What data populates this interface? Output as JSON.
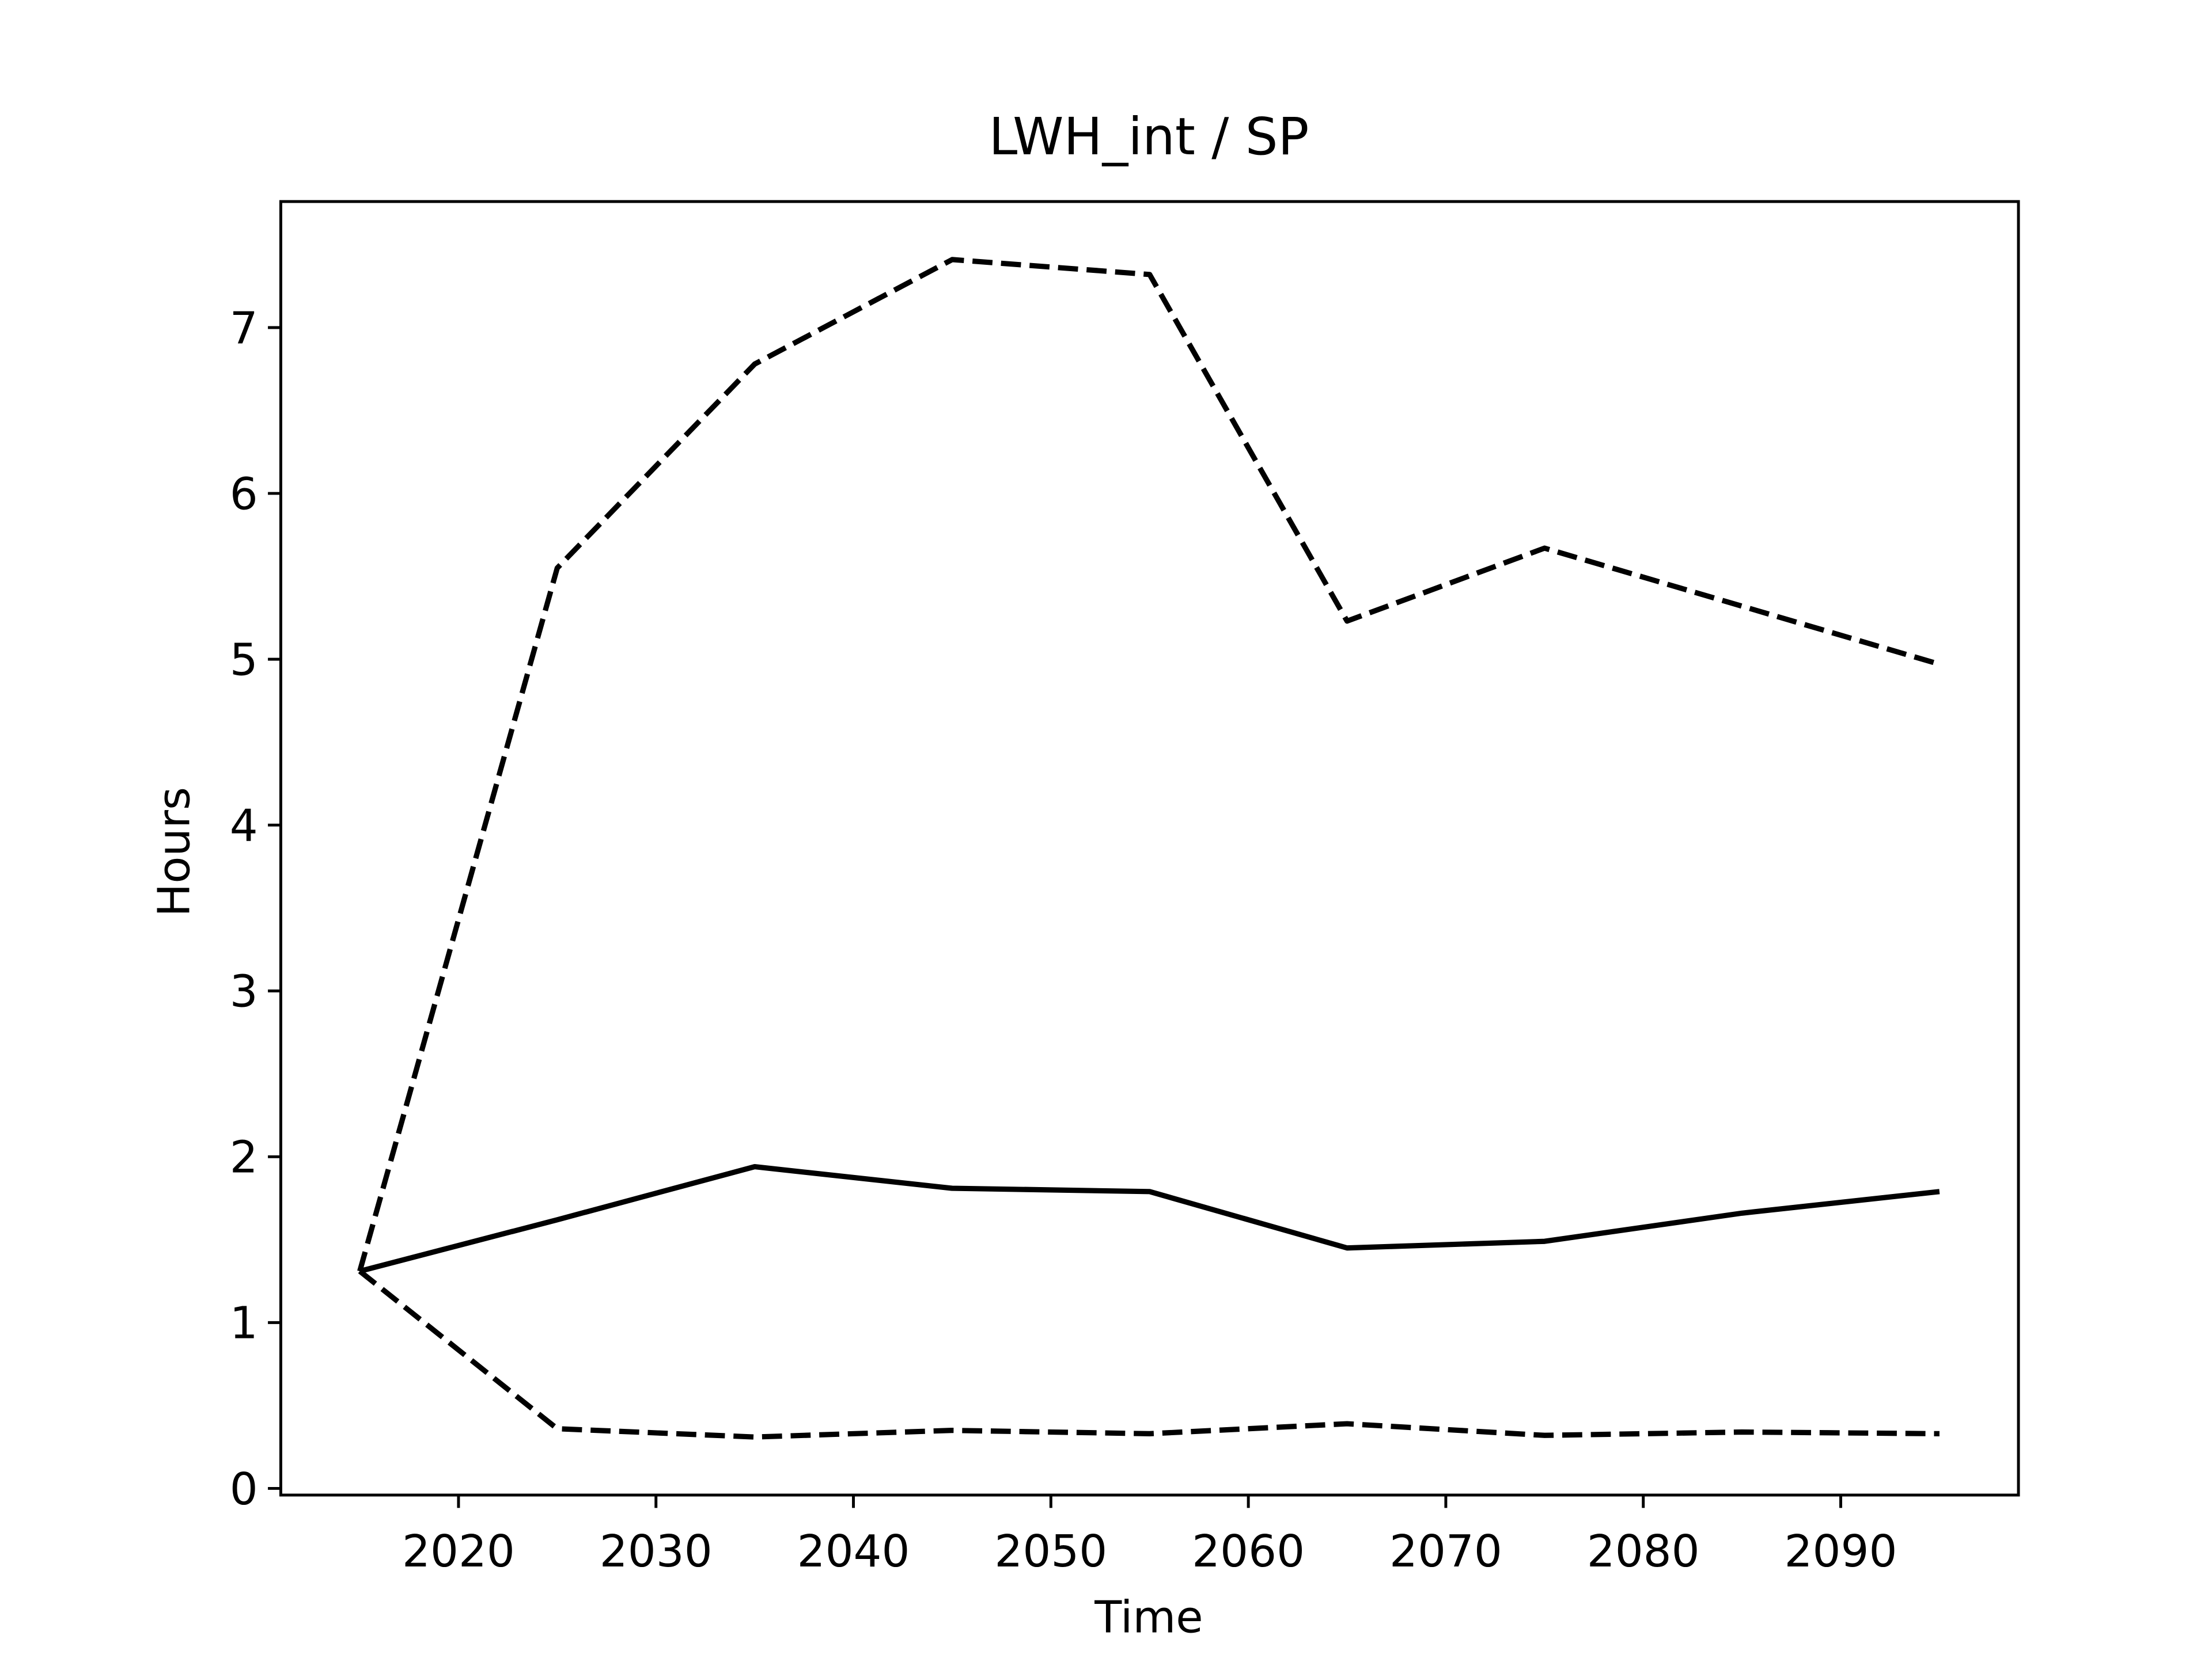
{
  "chart_data": {
    "type": "line",
    "title": "LWH_int / SP",
    "xlabel": "Time",
    "ylabel": "Hours",
    "x": [
      2015,
      2025,
      2035,
      2045,
      2055,
      2065,
      2075,
      2085,
      2095
    ],
    "series": [
      {
        "color": "#000000",
        "dash": "solid",
        "values": [
          1.31,
          1.62,
          1.94,
          1.81,
          1.79,
          1.45,
          1.49,
          1.66,
          1.79
        ]
      },
      {
        "color": "#000000",
        "dash": "dashed",
        "values": [
          1.31,
          5.55,
          6.78,
          7.41,
          7.32,
          5.23,
          5.67,
          5.32,
          4.97
        ]
      },
      {
        "color": "#000000",
        "dash": "dashed",
        "values": [
          1.31,
          0.36,
          0.31,
          0.35,
          0.33,
          0.39,
          0.32,
          0.34,
          0.33
        ]
      }
    ],
    "xlim": [
      2011,
      2099
    ],
    "xticks": [
      2020,
      2030,
      2040,
      2050,
      2060,
      2070,
      2080,
      2090
    ],
    "ylim": [
      -0.04,
      7.76
    ],
    "yticks": [
      0,
      1,
      2,
      3,
      4,
      5,
      6,
      7
    ],
    "grid": false
  }
}
